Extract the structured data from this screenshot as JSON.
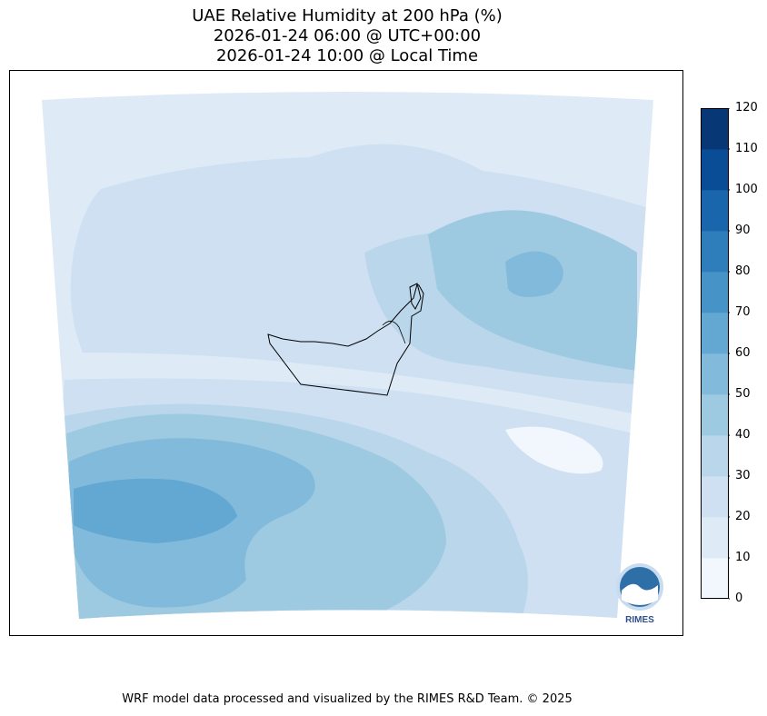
{
  "title": {
    "line1": "UAE Relative Humidity at 200 hPa (%)",
    "line2": "2026-01-24 06:00 @ UTC+00:00",
    "line3": "2026-01-24 10:00 @ Local Time"
  },
  "colorbar": {
    "ticks": [
      "0",
      "10",
      "20",
      "30",
      "40",
      "50",
      "60",
      "70",
      "80",
      "90",
      "100",
      "110",
      "120"
    ],
    "levels": [
      0,
      10,
      20,
      30,
      40,
      50,
      60,
      70,
      80,
      90,
      100,
      110,
      120
    ],
    "colors": [
      "#f1f7fd",
      "#deebf7",
      "#cee0f2",
      "#b9d6ea",
      "#9ecae1",
      "#82badb",
      "#63a8d3",
      "#4693c7",
      "#2e7ebc",
      "#1966ad",
      "#084d96",
      "#083776"
    ]
  },
  "logo": {
    "text": "RIMES"
  },
  "footer": "WRF model data processed and visualized by the RIMES R&D Team. © 2025"
}
